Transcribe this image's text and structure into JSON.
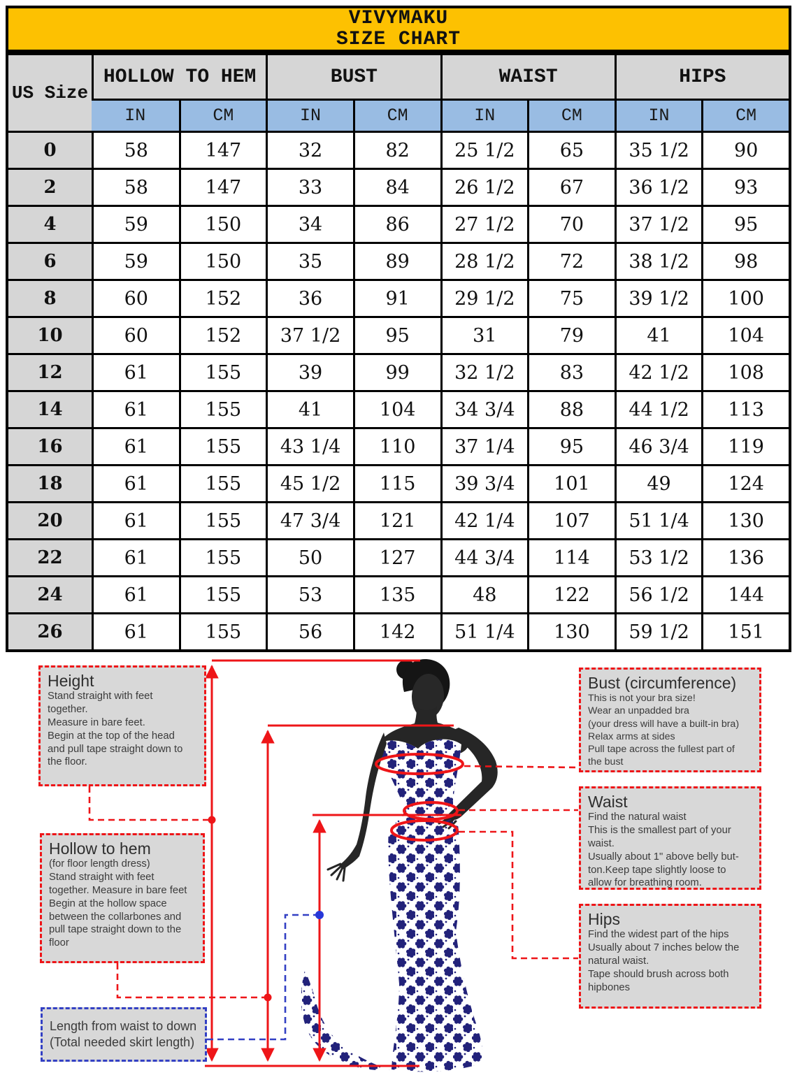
{
  "title": {
    "brand": "VIVYMAKU",
    "subtitle": "SIZE CHART"
  },
  "table": {
    "corner_header": "US Size",
    "groups": [
      "HOLLOW TO HEM",
      "BUST",
      "WAIST",
      "HIPS"
    ],
    "unit_headers": [
      "IN",
      "CM",
      "IN",
      "CM",
      "IN",
      "CM",
      "IN",
      "CM"
    ],
    "rows": [
      {
        "size": "0",
        "values": [
          "58",
          "147",
          "32",
          "82",
          "25 1/2",
          "65",
          "35 1/2",
          "90"
        ]
      },
      {
        "size": "2",
        "values": [
          "58",
          "147",
          "33",
          "84",
          "26 1/2",
          "67",
          "36 1/2",
          "93"
        ]
      },
      {
        "size": "4",
        "values": [
          "59",
          "150",
          "34",
          "86",
          "27 1/2",
          "70",
          "37 1/2",
          "95"
        ]
      },
      {
        "size": "6",
        "values": [
          "59",
          "150",
          "35",
          "89",
          "28 1/2",
          "72",
          "38 1/2",
          "98"
        ]
      },
      {
        "size": "8",
        "values": [
          "60",
          "152",
          "36",
          "91",
          "29 1/2",
          "75",
          "39 1/2",
          "100"
        ]
      },
      {
        "size": "10",
        "values": [
          "60",
          "152",
          "37 1/2",
          "95",
          "31",
          "79",
          "41",
          "104"
        ]
      },
      {
        "size": "12",
        "values": [
          "61",
          "155",
          "39",
          "99",
          "32 1/2",
          "83",
          "42 1/2",
          "108"
        ]
      },
      {
        "size": "14",
        "values": [
          "61",
          "155",
          "41",
          "104",
          "34 3/4",
          "88",
          "44 1/2",
          "113"
        ]
      },
      {
        "size": "16",
        "values": [
          "61",
          "155",
          "43 1/4",
          "110",
          "37 1/4",
          "95",
          "46 3/4",
          "119"
        ]
      },
      {
        "size": "18",
        "values": [
          "61",
          "155",
          "45 1/2",
          "115",
          "39 3/4",
          "101",
          "49",
          "124"
        ]
      },
      {
        "size": "20",
        "values": [
          "61",
          "155",
          "47 3/4",
          "121",
          "42 1/4",
          "107",
          "51 1/4",
          "130"
        ]
      },
      {
        "size": "22",
        "values": [
          "61",
          "155",
          "50",
          "127",
          "44 3/4",
          "114",
          "53 1/2",
          "136"
        ]
      },
      {
        "size": "24",
        "values": [
          "61",
          "155",
          "53",
          "135",
          "48",
          "122",
          "56 1/2",
          "144"
        ]
      },
      {
        "size": "26",
        "values": [
          "61",
          "155",
          "56",
          "142",
          "51 1/4",
          "130",
          "59 1/2",
          "151"
        ]
      }
    ]
  },
  "annotations": {
    "height": {
      "title": "Height",
      "body": "Stand straight with feet\ntogether.\nMeasure in bare feet.\nBegin at the top of the head\nand pull tape straight down to\nthe floor."
    },
    "hollow_to_hem": {
      "title": "Hollow to hem",
      "body": "(for floor length dress)\nStand straight with feet\ntogether. Measure in bare feet\nBegin at the hollow space\nbetween the collarbones and\npull tape straight down to the\nfloor"
    },
    "skirt_length": {
      "body": "Length from waist to down\n(Total needed skirt length)"
    },
    "bust": {
      "title": "Bust (circumference)",
      "body": "This is not your bra size!\nWear an unpadded bra\n(your dress will have a built-in bra)\nRelax arms at sides\nPull tape across the fullest part of\nthe bust"
    },
    "waist": {
      "title": "Waist",
      "body": "Find the natural waist\nThis is the smallest part of your\nwaist.\nUsually about 1\" above belly but-\nton.Keep tape slightly loose to\nallow for breathing room."
    },
    "hips": {
      "title": "Hips",
      "body": "Find the widest part of the hips\nUsually about 7 inches below the\nnatural waist.\nTape should brush across both\nhipbones"
    }
  },
  "colors": {
    "title_band_gold": "#FDC101",
    "header_gray": "#D6D6D6",
    "unit_blue": "#99BCE3",
    "measure_red": "#EE1518",
    "skirt_measure_blue": "#3340C4",
    "dress_navy": "#22227A",
    "silhouette_dark": "#262626"
  },
  "chart_data": {
    "type": "table",
    "title": "VIVYMAKU SIZE CHART",
    "columns": [
      "US Size",
      "Hollow to Hem IN",
      "Hollow to Hem CM",
      "Bust IN",
      "Bust CM",
      "Waist IN",
      "Waist CM",
      "Hips IN",
      "Hips CM"
    ],
    "rows": [
      [
        "0",
        "58",
        "147",
        "32",
        "82",
        "25 1/2",
        "65",
        "35 1/2",
        "90"
      ],
      [
        "2",
        "58",
        "147",
        "33",
        "84",
        "26 1/2",
        "67",
        "36 1/2",
        "93"
      ],
      [
        "4",
        "59",
        "150",
        "34",
        "86",
        "27 1/2",
        "70",
        "37 1/2",
        "95"
      ],
      [
        "6",
        "59",
        "150",
        "35",
        "89",
        "28 1/2",
        "72",
        "38 1/2",
        "98"
      ],
      [
        "8",
        "60",
        "152",
        "36",
        "91",
        "29 1/2",
        "75",
        "39 1/2",
        "100"
      ],
      [
        "10",
        "60",
        "152",
        "37 1/2",
        "95",
        "31",
        "79",
        "41",
        "104"
      ],
      [
        "12",
        "61",
        "155",
        "39",
        "99",
        "32 1/2",
        "83",
        "42 1/2",
        "108"
      ],
      [
        "14",
        "61",
        "155",
        "41",
        "104",
        "34 3/4",
        "88",
        "44 1/2",
        "113"
      ],
      [
        "16",
        "61",
        "155",
        "43 1/4",
        "110",
        "37 1/4",
        "95",
        "46 3/4",
        "119"
      ],
      [
        "18",
        "61",
        "155",
        "45 1/2",
        "115",
        "39 3/4",
        "101",
        "49",
        "124"
      ],
      [
        "20",
        "61",
        "155",
        "47 3/4",
        "121",
        "42 1/4",
        "107",
        "51 1/4",
        "130"
      ],
      [
        "22",
        "61",
        "155",
        "50",
        "127",
        "44 3/4",
        "114",
        "53 1/2",
        "136"
      ],
      [
        "24",
        "61",
        "155",
        "53",
        "135",
        "48",
        "122",
        "56 1/2",
        "144"
      ],
      [
        "26",
        "61",
        "155",
        "56",
        "142",
        "51 1/4",
        "130",
        "59 1/2",
        "151"
      ]
    ]
  }
}
